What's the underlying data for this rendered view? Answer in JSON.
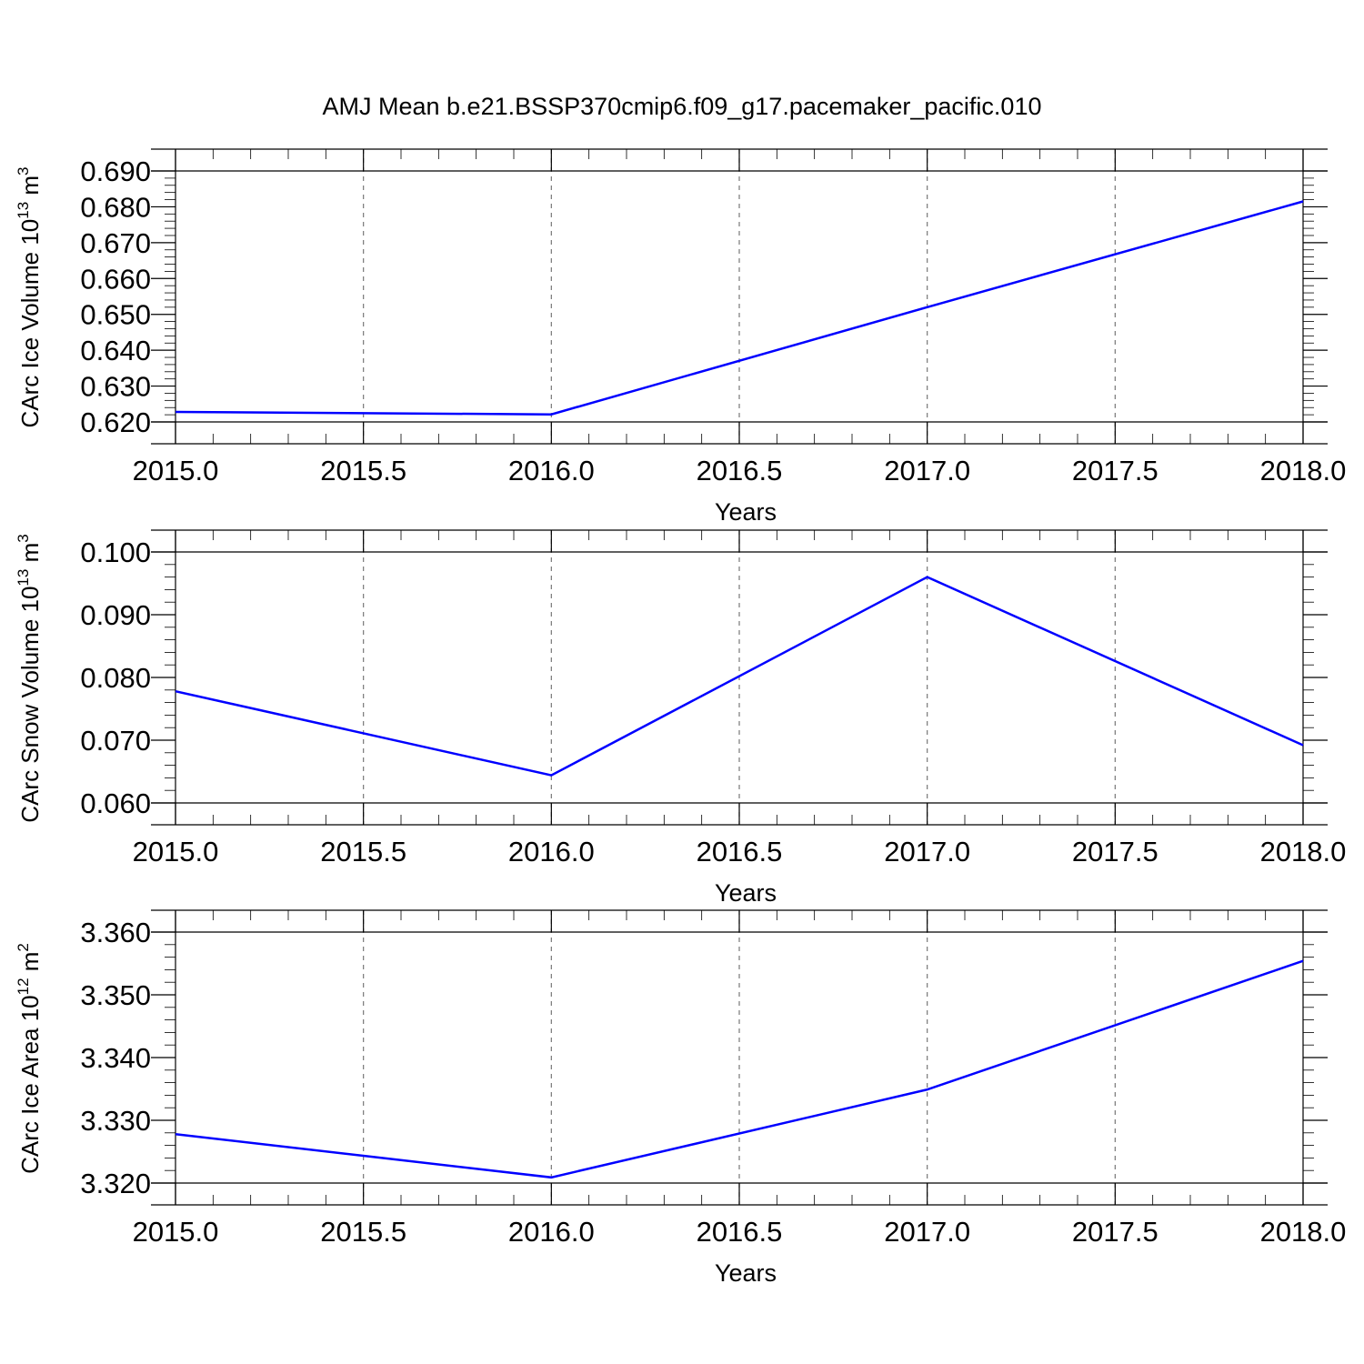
{
  "title": "AMJ Mean b.e21.BSSP370cmip6.f09_g17.pacemaker_pacific.010",
  "colors": {
    "line": "#0000ff",
    "grid": "#777777",
    "axis": "#000000"
  },
  "chart_data": [
    {
      "type": "line",
      "xlabel": "Years",
      "ylabel": "CArc Ice Volume 10",
      "ylabel_exp": "13",
      "ylabel_unit": "m",
      "ylabel_unit_exp": "3",
      "x": [
        2015,
        2016,
        2017,
        2018
      ],
      "y": [
        0.6228,
        0.6221,
        0.652,
        0.6815
      ],
      "xlim": [
        2015,
        2018
      ],
      "ylim": [
        0.62,
        0.69
      ],
      "xticks": [
        "2015.0",
        "2015.5",
        "2016.0",
        "2016.5",
        "2017.0",
        "2017.5",
        "2018.0"
      ],
      "yticks": [
        "0.620",
        "0.630",
        "0.640",
        "0.650",
        "0.660",
        "0.670",
        "0.680",
        "0.690"
      ],
      "grid": "vertical dashed",
      "legend": "none"
    },
    {
      "type": "line",
      "xlabel": "Years",
      "ylabel": "CArc Snow Volume 10",
      "ylabel_exp": "13",
      "ylabel_unit": "m",
      "ylabel_unit_exp": "3",
      "x": [
        2015,
        2016,
        2017,
        2018
      ],
      "y": [
        0.0778,
        0.0644,
        0.096,
        0.0692
      ],
      "xlim": [
        2015,
        2018
      ],
      "ylim": [
        0.06,
        0.1
      ],
      "xticks": [
        "2015.0",
        "2015.5",
        "2016.0",
        "2016.5",
        "2017.0",
        "2017.5",
        "2018.0"
      ],
      "yticks": [
        "0.060",
        "0.070",
        "0.080",
        "0.090",
        "0.100"
      ],
      "grid": "vertical dashed",
      "legend": "none"
    },
    {
      "type": "line",
      "xlabel": "Years",
      "ylabel": "CArc Ice Area 10",
      "ylabel_exp": "12",
      "ylabel_unit": "m",
      "ylabel_unit_exp": "2",
      "x": [
        2015,
        2016,
        2017,
        2018
      ],
      "y": [
        3.3278,
        3.3209,
        3.3349,
        3.3554
      ],
      "xlim": [
        2015,
        2018
      ],
      "ylim": [
        3.32,
        3.36
      ],
      "xticks": [
        "2015.0",
        "2015.5",
        "2016.0",
        "2016.5",
        "2017.0",
        "2017.5",
        "2018.0"
      ],
      "yticks": [
        "3.320",
        "3.330",
        "3.340",
        "3.350",
        "3.360"
      ],
      "grid": "vertical dashed",
      "legend": "none"
    }
  ]
}
